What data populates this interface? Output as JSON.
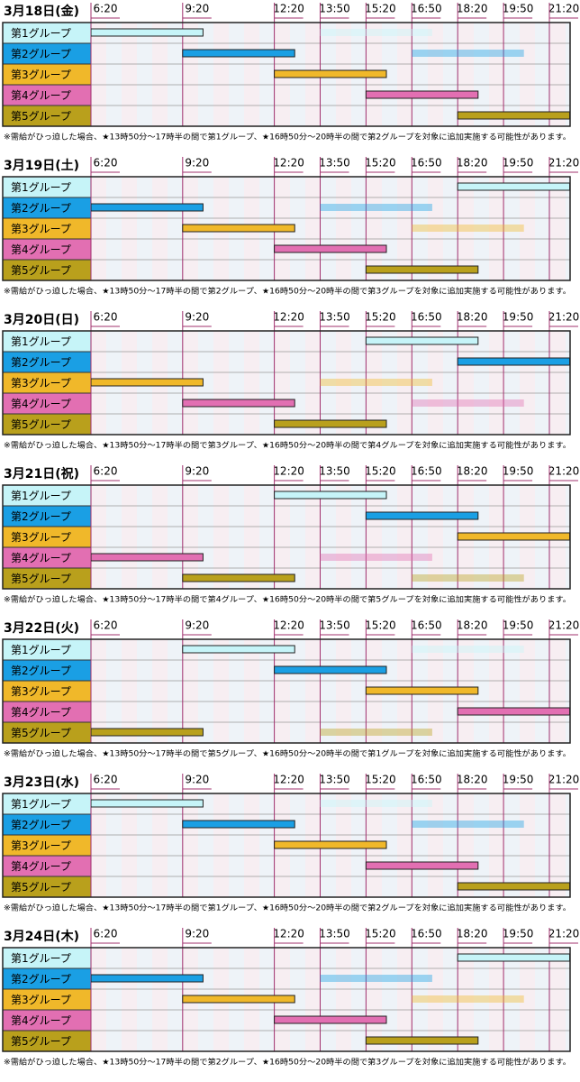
{
  "time_ticks": [
    {
      "value": 380,
      "label": "6:20"
    },
    {
      "value": 560,
      "label": "9:20"
    },
    {
      "value": 740,
      "label": "12:20"
    },
    {
      "value": 830,
      "label": "13:50"
    },
    {
      "value": 920,
      "label": "15:20"
    },
    {
      "value": 1010,
      "label": "16:50"
    },
    {
      "value": 1100,
      "label": "18:20"
    },
    {
      "value": 1190,
      "label": "19:50"
    },
    {
      "value": 1280,
      "label": "21:20"
    }
  ],
  "groups": [
    {
      "label": "第1グループ",
      "color": "#c6f4f8"
    },
    {
      "label": "第2グループ",
      "color": "#1a9fe4"
    },
    {
      "label": "第3グループ",
      "color": "#f0b82a"
    },
    {
      "label": "第4グループ",
      "color": "#e26fb2"
    },
    {
      "label": "第5グループ",
      "color": "#b9a01c"
    }
  ],
  "days": [
    {
      "date": "3月18日(金)",
      "note": "※需給がひっ迫した場合、★13時50分～17時半の間で第1グループ、★16時50分～20時半の間で第2グループを対象に追加実施する可能性があります。",
      "rows": [
        [
          {
            "start": 380,
            "end": 600,
            "tentative": false
          },
          {
            "start": 830,
            "end": 1050,
            "tentative": true
          }
        ],
        [
          {
            "start": 560,
            "end": 780,
            "tentative": false
          },
          {
            "start": 1010,
            "end": 1230,
            "tentative": true
          }
        ],
        [
          {
            "start": 740,
            "end": 960,
            "tentative": false
          }
        ],
        [
          {
            "start": 920,
            "end": 1140,
            "tentative": false
          }
        ],
        [
          {
            "start": 1100,
            "end": 1320,
            "tentative": false
          }
        ]
      ]
    },
    {
      "date": "3月19日(土)",
      "note": "※需給がひっ迫した場合、★13時50分～17時半の間で第2グループ、★16時50分～20時半の間で第3グループを対象に追加実施する可能性があります。",
      "rows": [
        [
          {
            "start": 1100,
            "end": 1320,
            "tentative": false
          }
        ],
        [
          {
            "start": 380,
            "end": 600,
            "tentative": false
          },
          {
            "start": 830,
            "end": 1050,
            "tentative": true
          }
        ],
        [
          {
            "start": 560,
            "end": 780,
            "tentative": false
          },
          {
            "start": 1010,
            "end": 1230,
            "tentative": true
          }
        ],
        [
          {
            "start": 740,
            "end": 960,
            "tentative": false
          }
        ],
        [
          {
            "start": 920,
            "end": 1140,
            "tentative": false
          }
        ]
      ]
    },
    {
      "date": "3月20日(日)",
      "note": "※需給がひっ迫した場合、★13時50分～17時半の間で第3グループ、★16時50分～20時半の間で第4グループを対象に追加実施する可能性があります。",
      "rows": [
        [
          {
            "start": 920,
            "end": 1140,
            "tentative": false
          }
        ],
        [
          {
            "start": 1100,
            "end": 1320,
            "tentative": false
          }
        ],
        [
          {
            "start": 380,
            "end": 600,
            "tentative": false
          },
          {
            "start": 830,
            "end": 1050,
            "tentative": true
          }
        ],
        [
          {
            "start": 560,
            "end": 780,
            "tentative": false
          },
          {
            "start": 1010,
            "end": 1230,
            "tentative": true
          }
        ],
        [
          {
            "start": 740,
            "end": 960,
            "tentative": false
          }
        ]
      ]
    },
    {
      "date": "3月21日(祝)",
      "note": "※需給がひっ迫した場合、★13時50分～17時半の間で第4グループ、★16時50分～20時半の間で第5グループを対象に追加実施する可能性があります。",
      "rows": [
        [
          {
            "start": 740,
            "end": 960,
            "tentative": false
          }
        ],
        [
          {
            "start": 920,
            "end": 1140,
            "tentative": false
          }
        ],
        [
          {
            "start": 1100,
            "end": 1320,
            "tentative": false
          }
        ],
        [
          {
            "start": 380,
            "end": 600,
            "tentative": false
          },
          {
            "start": 830,
            "end": 1050,
            "tentative": true
          }
        ],
        [
          {
            "start": 560,
            "end": 780,
            "tentative": false
          },
          {
            "start": 1010,
            "end": 1230,
            "tentative": true
          }
        ]
      ]
    },
    {
      "date": "3月22日(火)",
      "note": "※需給がひっ迫した場合、★13時50分～17時半の間で第5グループ、★16時50分～20時半の間で第1グループを対象に追加実施する可能性があります。",
      "rows": [
        [
          {
            "start": 560,
            "end": 780,
            "tentative": false
          },
          {
            "start": 1010,
            "end": 1230,
            "tentative": true
          }
        ],
        [
          {
            "start": 740,
            "end": 960,
            "tentative": false
          }
        ],
        [
          {
            "start": 920,
            "end": 1140,
            "tentative": false
          }
        ],
        [
          {
            "start": 1100,
            "end": 1320,
            "tentative": false
          }
        ],
        [
          {
            "start": 380,
            "end": 600,
            "tentative": false
          },
          {
            "start": 830,
            "end": 1050,
            "tentative": true
          }
        ]
      ]
    },
    {
      "date": "3月23日(水)",
      "note": "※需給がひっ迫した場合、★13時50分～17時半の間で第1グループ、★16時50分～20時半の間で第2グループを対象に追加実施する可能性があります。",
      "rows": [
        [
          {
            "start": 380,
            "end": 600,
            "tentative": false
          },
          {
            "start": 830,
            "end": 1050,
            "tentative": true
          }
        ],
        [
          {
            "start": 560,
            "end": 780,
            "tentative": false
          },
          {
            "start": 1010,
            "end": 1230,
            "tentative": true
          }
        ],
        [
          {
            "start": 740,
            "end": 960,
            "tentative": false
          }
        ],
        [
          {
            "start": 920,
            "end": 1140,
            "tentative": false
          }
        ],
        [
          {
            "start": 1100,
            "end": 1320,
            "tentative": false
          }
        ]
      ]
    },
    {
      "date": "3月24日(木)",
      "note": "※需給がひっ迫した場合、★13時50分～17時半の間で第2グループ、★16時50分～20時半の間で第3グループを対象に追加実施する可能性があります。",
      "rows": [
        [
          {
            "start": 1100,
            "end": 1320,
            "tentative": false
          }
        ],
        [
          {
            "start": 380,
            "end": 600,
            "tentative": false
          },
          {
            "start": 830,
            "end": 1050,
            "tentative": true
          }
        ],
        [
          {
            "start": 560,
            "end": 780,
            "tentative": false
          },
          {
            "start": 1010,
            "end": 1230,
            "tentative": true
          }
        ],
        [
          {
            "start": 740,
            "end": 960,
            "tentative": false
          }
        ],
        [
          {
            "start": 920,
            "end": 1140,
            "tentative": false
          }
        ]
      ]
    }
  ]
}
